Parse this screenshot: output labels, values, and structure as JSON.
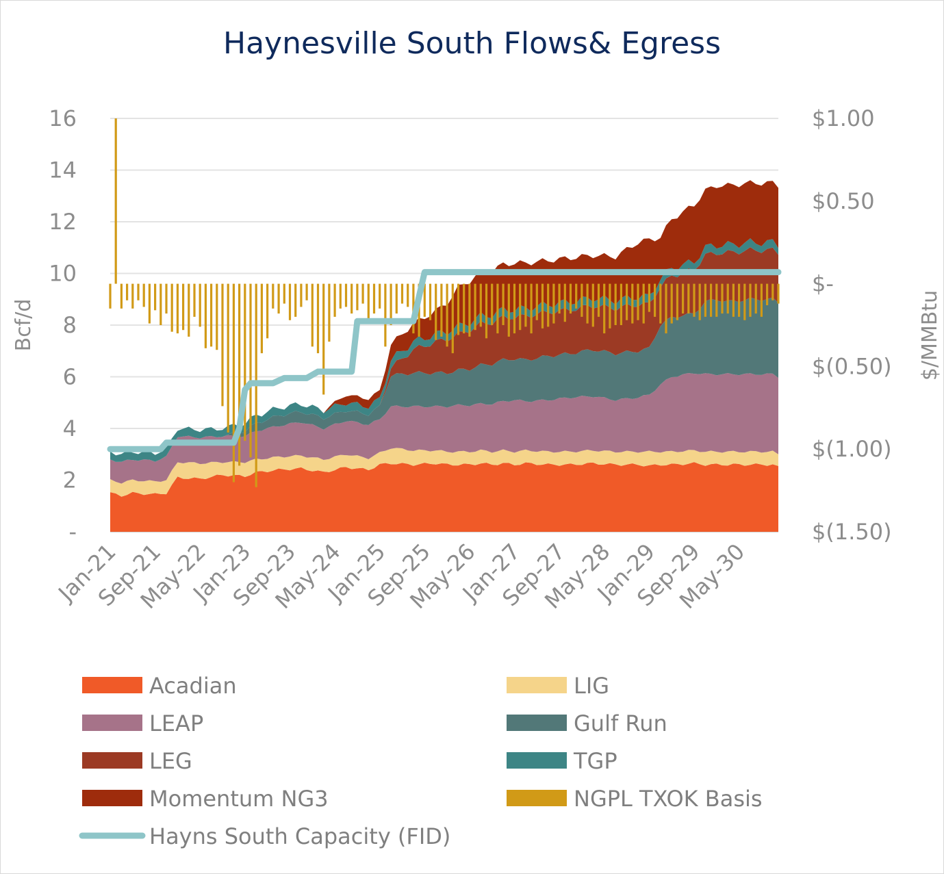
{
  "chart_data": {
    "type": "area",
    "title": "Haynesville South Flows& Egress",
    "ylabel": "Bcf/d",
    "y2label": "$/MMBtu",
    "ylim": [
      0,
      16
    ],
    "y2lim": [
      -1.5,
      1.0
    ],
    "y_ticks": [
      {
        "value": 0,
        "label": "-"
      },
      {
        "value": 2,
        "label": "2"
      },
      {
        "value": 4,
        "label": "4"
      },
      {
        "value": 6,
        "label": "6"
      },
      {
        "value": 8,
        "label": "8"
      },
      {
        "value": 10,
        "label": "10"
      },
      {
        "value": 12,
        "label": "12"
      },
      {
        "value": 14,
        "label": "14"
      },
      {
        "value": 16,
        "label": "16"
      }
    ],
    "y2_ticks": [
      {
        "value": 1.0,
        "label": "$1.00"
      },
      {
        "value": 0.5,
        "label": "$0.50"
      },
      {
        "value": 0.0,
        "label": "$-"
      },
      {
        "value": -0.5,
        "label": "$(0.50)"
      },
      {
        "value": -1.0,
        "label": "$(1.00)"
      },
      {
        "value": -1.5,
        "label": "$(1.50)"
      }
    ],
    "x_ticks": [
      "Jan-21",
      "Sep-21",
      "May-22",
      "Jan-23",
      "Sep-23",
      "May-24",
      "Jan-25",
      "Sep-25",
      "May-26",
      "Jan-27",
      "Sep-27",
      "May-28",
      "Jan-29",
      "Sep-29",
      "May-30"
    ],
    "x_start": "Jan-21",
    "x_end": "Dec-30",
    "grid": true,
    "legend_position": "bottom",
    "series_colors": {
      "Acadian": "#f05a28",
      "LIG": "#f5d48a",
      "LEAP": "#a67389",
      "Gulf Run": "#527878",
      "LEG": "#9c3a24",
      "TGP": "#3d8585",
      "Momentum NG3": "#9e2c0c",
      "NGPL TXOK Basis": "#d19a17",
      "Hayns South Capacity (FID)": "#8ec5c8"
    },
    "stack_breakpoints": {
      "x_months": [
        0,
        2,
        4,
        8,
        10,
        12,
        16,
        20,
        24,
        26,
        30,
        34,
        38,
        42,
        46,
        48,
        50,
        54,
        58,
        60,
        62,
        64,
        66,
        68,
        70,
        72,
        74,
        78,
        82,
        86,
        90,
        94,
        96,
        98,
        100,
        104,
        106,
        108,
        110,
        114,
        118,
        119
      ],
      "Acadian": [
        1.5,
        1.4,
        1.5,
        1.45,
        1.5,
        2.1,
        2.05,
        2.2,
        2.15,
        2.3,
        2.4,
        2.45,
        2.3,
        2.5,
        2.4,
        2.6,
        2.65,
        2.6,
        2.65,
        2.6,
        2.6,
        2.6,
        2.65,
        2.6,
        2.65,
        2.6,
        2.65,
        2.6,
        2.6,
        2.65,
        2.6,
        2.6,
        2.55,
        2.6,
        2.6,
        2.65,
        2.6,
        2.6,
        2.6,
        2.6,
        2.6,
        2.5
      ],
      "LIG": [
        0.5,
        0.5,
        0.5,
        0.5,
        0.5,
        0.6,
        0.6,
        0.5,
        0.55,
        0.5,
        0.5,
        0.5,
        0.5,
        0.5,
        0.45,
        0.45,
        0.6,
        0.55,
        0.5,
        0.5,
        0.5,
        0.5,
        0.5,
        0.5,
        0.5,
        0.5,
        0.5,
        0.5,
        0.5,
        0.5,
        0.5,
        0.5,
        0.55,
        0.5,
        0.5,
        0.5,
        0.5,
        0.5,
        0.5,
        0.5,
        0.5,
        0.5
      ],
      "LEAP": [
        0.8,
        0.8,
        0.8,
        0.8,
        0.9,
        1.0,
        1.0,
        1.0,
        1.0,
        1.1,
        1.2,
        1.3,
        1.2,
        1.3,
        1.3,
        1.3,
        1.6,
        1.7,
        1.7,
        1.75,
        1.8,
        1.8,
        1.8,
        1.85,
        1.9,
        2.0,
        1.9,
        2.0,
        2.1,
        2.1,
        2.0,
        2.1,
        2.2,
        2.6,
        2.9,
        3.0,
        3.0,
        3.0,
        3.0,
        3.0,
        3.0,
        3.0
      ],
      "Gulf Run": [
        0,
        0,
        0,
        0,
        0,
        0,
        0,
        0,
        0.2,
        0.3,
        0.4,
        0.4,
        0.4,
        0.4,
        0.4,
        0.5,
        1.2,
        1.3,
        1.3,
        1.3,
        1.35,
        1.4,
        1.5,
        1.55,
        1.6,
        1.6,
        1.6,
        1.7,
        1.7,
        1.8,
        1.8,
        1.8,
        1.8,
        2.3,
        2.3,
        2.3,
        2.8,
        2.9,
        2.8,
        2.9,
        2.9,
        2.9
      ],
      "LEG": [
        0,
        0,
        0,
        0,
        0,
        0,
        0,
        0,
        0,
        0,
        0,
        0,
        0,
        0,
        0,
        0,
        0.3,
        0.9,
        1.2,
        1.3,
        1.4,
        1.5,
        1.6,
        1.6,
        1.65,
        1.6,
        1.7,
        1.7,
        1.7,
        1.7,
        1.75,
        1.8,
        1.7,
        1.5,
        1.6,
        1.7,
        1.8,
        1.8,
        1.9,
        1.9,
        1.9,
        1.9
      ],
      "TGP": [
        0.3,
        0.3,
        0.3,
        0.3,
        0.3,
        0.3,
        0.3,
        0.3,
        0.3,
        0.3,
        0.3,
        0.3,
        0.3,
        0.3,
        0.3,
        0.3,
        0.3,
        0.3,
        0.3,
        0.3,
        0.3,
        0.3,
        0.3,
        0.3,
        0.3,
        0.3,
        0.3,
        0.3,
        0.3,
        0.3,
        0.3,
        0.3,
        0.3,
        0.3,
        0.3,
        0.3,
        0.3,
        0.3,
        0.3,
        0.3,
        0.3,
        0.3
      ],
      "Momentum NG3": [
        0,
        0,
        0,
        0,
        0,
        0,
        0,
        0,
        0,
        0,
        0,
        0,
        0,
        0.3,
        0.3,
        0.3,
        0.6,
        0.7,
        0.9,
        1.1,
        1.5,
        1.6,
        1.7,
        1.7,
        1.75,
        1.8,
        1.75,
        1.7,
        1.7,
        1.65,
        1.7,
        2.1,
        2.2,
        1.6,
        1.9,
        2.2,
        2.2,
        2.3,
        2.3,
        2.3,
        2.3,
        2.3
      ]
    },
    "capacity_steps": {
      "name": "Hayns South Capacity (FID)",
      "x_months": [
        0,
        9,
        10,
        22,
        23,
        24,
        25,
        29,
        31,
        35,
        37,
        43,
        44,
        54,
        56,
        119
      ],
      "values": [
        3.2,
        3.2,
        3.45,
        3.45,
        4.0,
        5.5,
        5.75,
        5.75,
        5.95,
        5.95,
        6.2,
        6.2,
        8.15,
        8.15,
        10.05,
        10.05
      ]
    },
    "basis": {
      "name": "NGPL TXOK Basis",
      "monthly_values": [
        -0.15,
        1.0,
        -0.15,
        -0.1,
        -0.15,
        -0.1,
        -0.14,
        -0.24,
        -0.16,
        -0.25,
        -0.18,
        -0.29,
        -0.3,
        -0.28,
        -0.32,
        -0.2,
        -0.26,
        -0.39,
        -0.38,
        -0.4,
        -0.74,
        -0.9,
        -1.2,
        -1.1,
        -0.95,
        -1.05,
        -1.23,
        -0.42,
        -0.33,
        -0.15,
        -0.18,
        -0.12,
        -0.22,
        -0.2,
        -0.14,
        -0.1,
        -0.38,
        -0.42,
        -0.67,
        -0.35,
        -0.2,
        -0.15,
        -0.14,
        -0.18,
        -0.16,
        -0.12,
        -0.23,
        -0.18,
        -0.15,
        -0.38,
        -0.25,
        -0.18,
        -0.12,
        -0.14,
        -0.3,
        -0.32,
        -0.2,
        -0.22,
        -0.34,
        -0.32,
        -0.38,
        -0.42,
        -0.31,
        -0.3,
        -0.32,
        -0.28,
        -0.26,
        -0.33,
        -0.25,
        -0.3,
        -0.25,
        -0.32,
        -0.3,
        -0.28,
        -0.26,
        -0.3,
        -0.22,
        -0.27,
        -0.26,
        -0.24,
        -0.18,
        -0.23,
        -0.18,
        -0.15,
        -0.2,
        -0.24,
        -0.26,
        -0.2,
        -0.3,
        -0.27,
        -0.25,
        -0.25,
        -0.22,
        -0.24,
        -0.22,
        -0.24,
        -0.17,
        -0.2,
        -0.24,
        -0.3,
        -0.24,
        -0.22,
        -0.18,
        -0.18,
        -0.2,
        -0.22,
        -0.2,
        -0.2,
        -0.2,
        -0.18,
        -0.18,
        -0.2,
        -0.2,
        -0.22,
        -0.2,
        -0.18,
        -0.2,
        -0.13,
        -0.1,
        -0.12
      ]
    },
    "legend": [
      {
        "name": "Acadian",
        "kind": "area"
      },
      {
        "name": "LIG",
        "kind": "area"
      },
      {
        "name": "LEAP",
        "kind": "area"
      },
      {
        "name": "Gulf Run",
        "kind": "area"
      },
      {
        "name": "LEG",
        "kind": "area"
      },
      {
        "name": "TGP",
        "kind": "area"
      },
      {
        "name": "Momentum NG3",
        "kind": "area"
      },
      {
        "name": "NGPL TXOK Basis",
        "kind": "bar"
      },
      {
        "name": "Hayns South Capacity (FID)",
        "kind": "line"
      }
    ]
  }
}
